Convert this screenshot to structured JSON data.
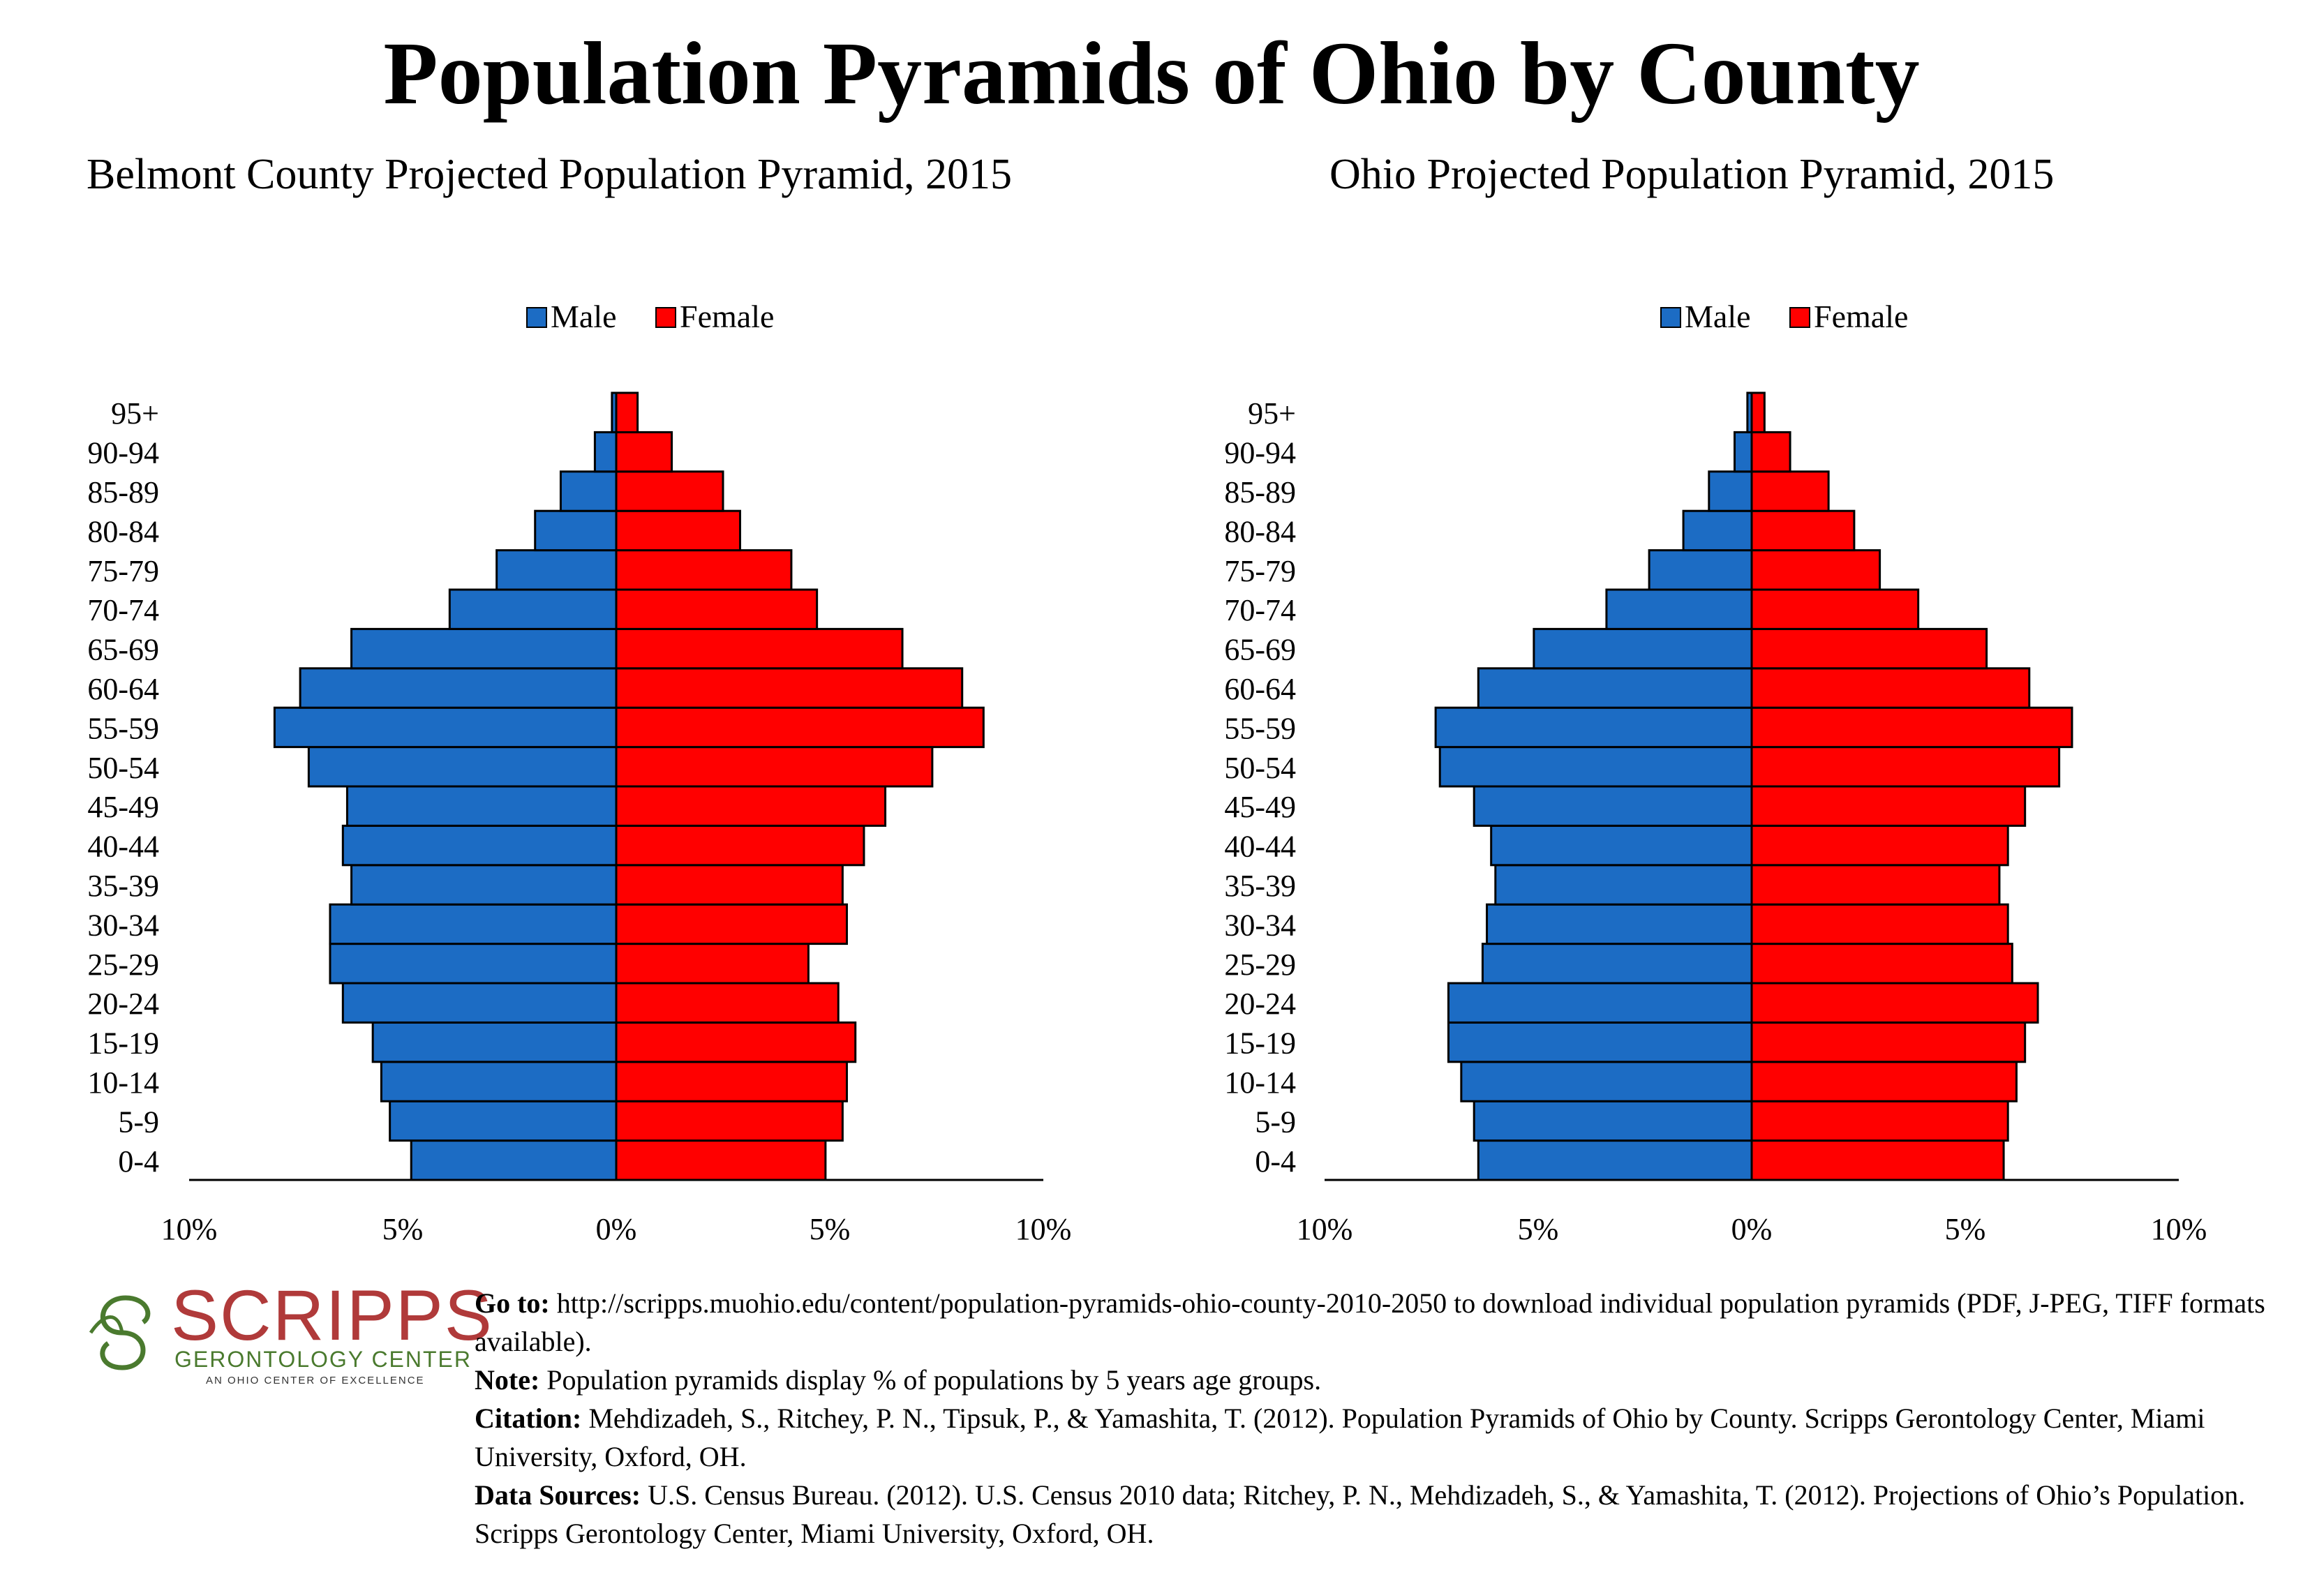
{
  "title": "Population Pyramids of Ohio by County",
  "logo": {
    "name": "SCRIPPS",
    "subtitle": "GERONTOLOGY CENTER",
    "tagline": "AN OHIO CENTER OF EXCELLENCE"
  },
  "footer": {
    "goto_label": "Go to:",
    "goto_text": " http://scripps.muohio.edu/content/population-pyramids-ohio-county-2010-2050 to download individual population pyramids (PDF, J-PEG, TIFF formats available).",
    "note_label": "Note:",
    "note_text": " Population pyramids display % of populations by 5 years age groups.",
    "citation_label": "Citation:",
    "citation_text": " Mehdizadeh, S., Ritchey, P. N., Tipsuk, P., & Yamashita, T. (2012). Population Pyramids of Ohio by County. Scripps Gerontology Center, Miami University, Oxford, OH.",
    "sources_label": "Data Sources:",
    "sources_text": " U.S. Census Bureau. (2012). U.S. Census 2010 data; Ritchey, P. N., Mehdizadeh, S., & Yamashita, T. (2012). Projections of Ohio’s Population. Scripps Gerontology Center, Miami University, Oxford, OH."
  },
  "colors": {
    "male": "#1c6cc4",
    "female": "#ff0000",
    "logo_red": "#b03a3a",
    "logo_green": "#4a7a2e"
  },
  "chart_data": [
    {
      "type": "bar",
      "orientation": "horizontal-pyramid",
      "title": "Belmont County Projected Population Pyramid, 2015",
      "categories": [
        "0-4",
        "5-9",
        "10-14",
        "15-19",
        "20-24",
        "25-29",
        "30-34",
        "35-39",
        "40-44",
        "45-49",
        "50-54",
        "55-59",
        "60-64",
        "65-69",
        "70-74",
        "75-79",
        "80-84",
        "85-89",
        "90-94",
        "95+"
      ],
      "series": [
        {
          "name": "Male",
          "values": [
            4.8,
            5.3,
            5.5,
            5.7,
            6.4,
            6.7,
            6.7,
            6.2,
            6.4,
            6.3,
            7.2,
            8.0,
            7.4,
            6.2,
            3.9,
            2.8,
            1.9,
            1.3,
            0.5,
            0.1
          ]
        },
        {
          "name": "Female",
          "values": [
            4.9,
            5.3,
            5.4,
            5.6,
            5.2,
            4.5,
            5.4,
            5.3,
            5.8,
            6.3,
            7.4,
            8.6,
            8.1,
            6.7,
            4.7,
            4.1,
            2.9,
            2.5,
            1.3,
            0.5
          ]
        }
      ],
      "xlim": [
        -10,
        10
      ],
      "xticks": [
        "10%",
        "5%",
        "0%",
        "5%",
        "10%"
      ],
      "legend": "top-center"
    },
    {
      "type": "bar",
      "orientation": "horizontal-pyramid",
      "title": "Ohio Projected Population Pyramid, 2015",
      "categories": [
        "0-4",
        "5-9",
        "10-14",
        "15-19",
        "20-24",
        "25-29",
        "30-34",
        "35-39",
        "40-44",
        "45-49",
        "50-54",
        "55-59",
        "60-64",
        "65-69",
        "70-74",
        "75-79",
        "80-84",
        "85-89",
        "90-94",
        "95+"
      ],
      "series": [
        {
          "name": "Male",
          "values": [
            6.4,
            6.5,
            6.8,
            7.1,
            7.1,
            6.3,
            6.2,
            6.0,
            6.1,
            6.5,
            7.3,
            7.4,
            6.4,
            5.1,
            3.4,
            2.4,
            1.6,
            1.0,
            0.4,
            0.1
          ]
        },
        {
          "name": "Female",
          "values": [
            5.9,
            6.0,
            6.2,
            6.4,
            6.7,
            6.1,
            6.0,
            5.8,
            6.0,
            6.4,
            7.2,
            7.5,
            6.5,
            5.5,
            3.9,
            3.0,
            2.4,
            1.8,
            0.9,
            0.3
          ]
        }
      ],
      "xlim": [
        -10,
        10
      ],
      "xticks": [
        "10%",
        "5%",
        "0%",
        "5%",
        "10%"
      ],
      "legend": "top-center"
    }
  ]
}
